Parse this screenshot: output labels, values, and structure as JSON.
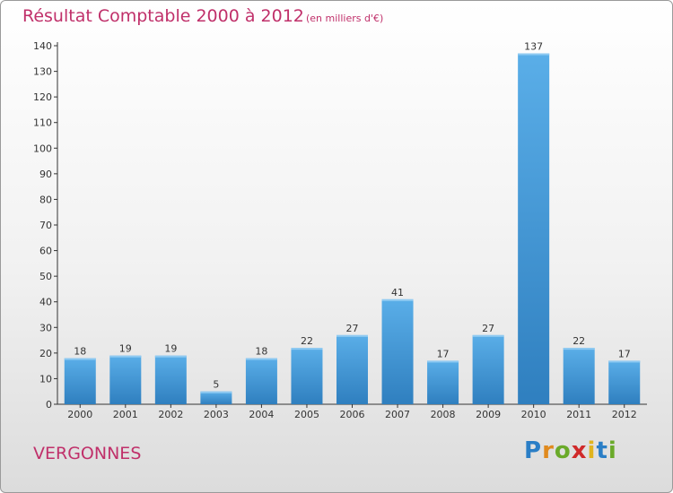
{
  "chart_data": {
    "type": "bar",
    "title": "Résultat Comptable 2000 à 2012",
    "subtitle": "(en milliers d'€)",
    "categories": [
      "2000",
      "2001",
      "2002",
      "2003",
      "2004",
      "2005",
      "2006",
      "2007",
      "2008",
      "2009",
      "2010",
      "2011",
      "2012"
    ],
    "values": [
      18,
      19,
      19,
      5,
      18,
      22,
      27,
      41,
      17,
      27,
      137,
      22,
      17
    ],
    "ylim": [
      0,
      140
    ],
    "yticks": [
      0,
      10,
      20,
      30,
      40,
      50,
      60,
      70,
      80,
      90,
      100,
      110,
      120,
      130,
      140
    ],
    "xlabel": "",
    "ylabel": "",
    "grid": false,
    "bar_color_top": "#5aaee8",
    "bar_color_bottom": "#2f7fbf"
  },
  "commune": "VERGONNES",
  "logo": {
    "letters": [
      "P",
      "r",
      "o",
      "x",
      "i",
      "t",
      "i"
    ],
    "colors": [
      "#2a7ec6",
      "#e08a1e",
      "#6aaa2a",
      "#d02a2a",
      "#e0b41e",
      "#2a7ec6",
      "#6aaa2a"
    ]
  },
  "colors": {
    "title": "#c0306a",
    "axis": "#333333"
  }
}
